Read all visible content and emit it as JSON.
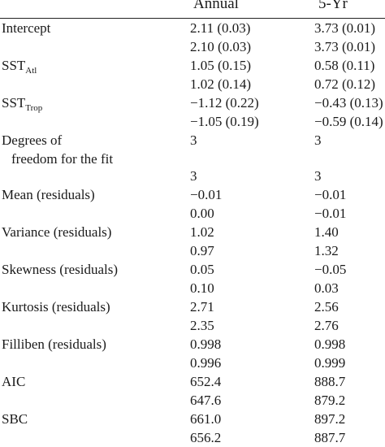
{
  "header": {
    "annual": "Annual",
    "fiveyr": "5-Yr"
  },
  "rows": [
    {
      "label": "Intercept",
      "annual": "2.11 (0.03)",
      "fiveyr": "3.73 (0.01)"
    },
    {
      "label": "",
      "annual": "2.10 (0.03)",
      "fiveyr": "3.73 (0.01)"
    },
    {
      "label_main": "SST",
      "label_sub": "Atl",
      "annual": "1.05 (0.15)",
      "fiveyr": "0.58 (0.11)"
    },
    {
      "label": "",
      "annual": "1.02 (0.14)",
      "fiveyr": "0.72 (0.12)"
    },
    {
      "label_main": "SST",
      "label_sub": "Trop",
      "annual": "−1.12 (0.22)",
      "fiveyr": "−0.43 (0.13)"
    },
    {
      "label": "",
      "annual": "−1.05 (0.19)",
      "fiveyr": "−0.59 (0.14)"
    },
    {
      "label_line1": "Degrees of",
      "label_line2": "freedom for the fit",
      "annual": "3",
      "fiveyr": "3"
    },
    {
      "label": "",
      "annual": "3",
      "fiveyr": "3"
    },
    {
      "label": "Mean (residuals)",
      "annual": "−0.01",
      "fiveyr": "−0.01"
    },
    {
      "label": "",
      "annual": "0.00",
      "fiveyr": "−0.01"
    },
    {
      "label": "Variance (residuals)",
      "annual": "1.02",
      "fiveyr": "1.40"
    },
    {
      "label": "",
      "annual": "0.97",
      "fiveyr": "1.32"
    },
    {
      "label": "Skewness (residuals)",
      "annual": "0.05",
      "fiveyr": "−0.05"
    },
    {
      "label": "",
      "annual": "0.10",
      "fiveyr": "0.03"
    },
    {
      "label": "Kurtosis (residuals)",
      "annual": "2.71",
      "fiveyr": "2.56"
    },
    {
      "label": "",
      "annual": "2.35",
      "fiveyr": "2.76"
    },
    {
      "label": "Filliben (residuals)",
      "annual": "0.998",
      "fiveyr": "0.998"
    },
    {
      "label": "",
      "annual": "0.996",
      "fiveyr": "0.999"
    },
    {
      "label": "AIC",
      "annual": "652.4",
      "fiveyr": "888.7"
    },
    {
      "label": "",
      "annual": "647.6",
      "fiveyr": "879.2"
    },
    {
      "label": "SBC",
      "annual": "661.0",
      "fiveyr": "897.2"
    },
    {
      "label": "",
      "annual": "656.2",
      "fiveyr": "887.7"
    }
  ]
}
